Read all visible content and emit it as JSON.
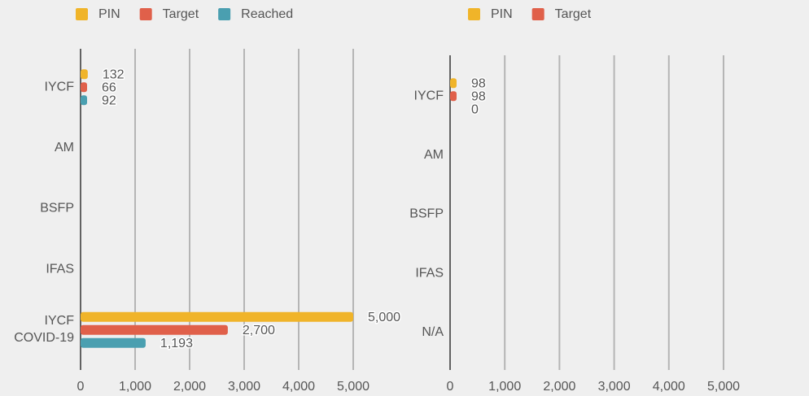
{
  "chart_data": [
    {
      "type": "hbar",
      "categories": [
        "IYCF",
        "AM",
        "BSFP",
        "IFAS",
        "IYCF COVID-19"
      ],
      "series": [
        {
          "name": "PIN",
          "color": "#f0b429",
          "values": [
            132,
            null,
            null,
            null,
            5000
          ],
          "value_labels": [
            "132",
            null,
            null,
            null,
            "5,000"
          ]
        },
        {
          "name": "Target",
          "color": "#e0604a",
          "values": [
            66,
            null,
            null,
            null,
            2700
          ],
          "value_labels": [
            "66",
            null,
            null,
            null,
            "2,700"
          ]
        },
        {
          "name": "Reached",
          "color": "#4a9fb0",
          "values": [
            92,
            null,
            null,
            null,
            1193
          ],
          "value_labels": [
            "92",
            null,
            null,
            null,
            "1,193"
          ]
        }
      ],
      "xlim": [
        0,
        5000
      ],
      "xticks": [
        0,
        {
          "value": 1000,
          "label": "1,000"
        },
        {
          "value": 2000,
          "label": "2,000"
        },
        {
          "value": 3000,
          "label": "3,000"
        },
        {
          "value": 4000,
          "label": "4,000"
        },
        {
          "value": 5000,
          "label": "5,000"
        }
      ],
      "grid": true,
      "legend": "top"
    },
    {
      "type": "hbar",
      "categories": [
        "IYCF",
        "AM",
        "BSFP",
        "IFAS",
        "N/A"
      ],
      "series": [
        {
          "name": "PIN",
          "color": "#f0b429",
          "values": [
            98,
            null,
            null,
            null,
            null
          ]
        },
        {
          "name": "Target",
          "color": "#e0604a",
          "values": [
            98,
            null,
            null,
            null,
            null
          ]
        },
        {
          "color": "#4a9fb0",
          "values": [
            0,
            null,
            null,
            null,
            null
          ]
        }
      ],
      "xlim": [
        0,
        5000
      ],
      "xticks": [
        0,
        {
          "value": 1000,
          "label": "1,000"
        },
        {
          "value": 2000,
          "label": "2,000"
        },
        {
          "value": 3000,
          "label": "3,000"
        },
        {
          "value": 4000,
          "label": "4,000"
        },
        {
          "value": 5000,
          "label": "5,000"
        }
      ],
      "grid": true,
      "legend": "top"
    }
  ]
}
